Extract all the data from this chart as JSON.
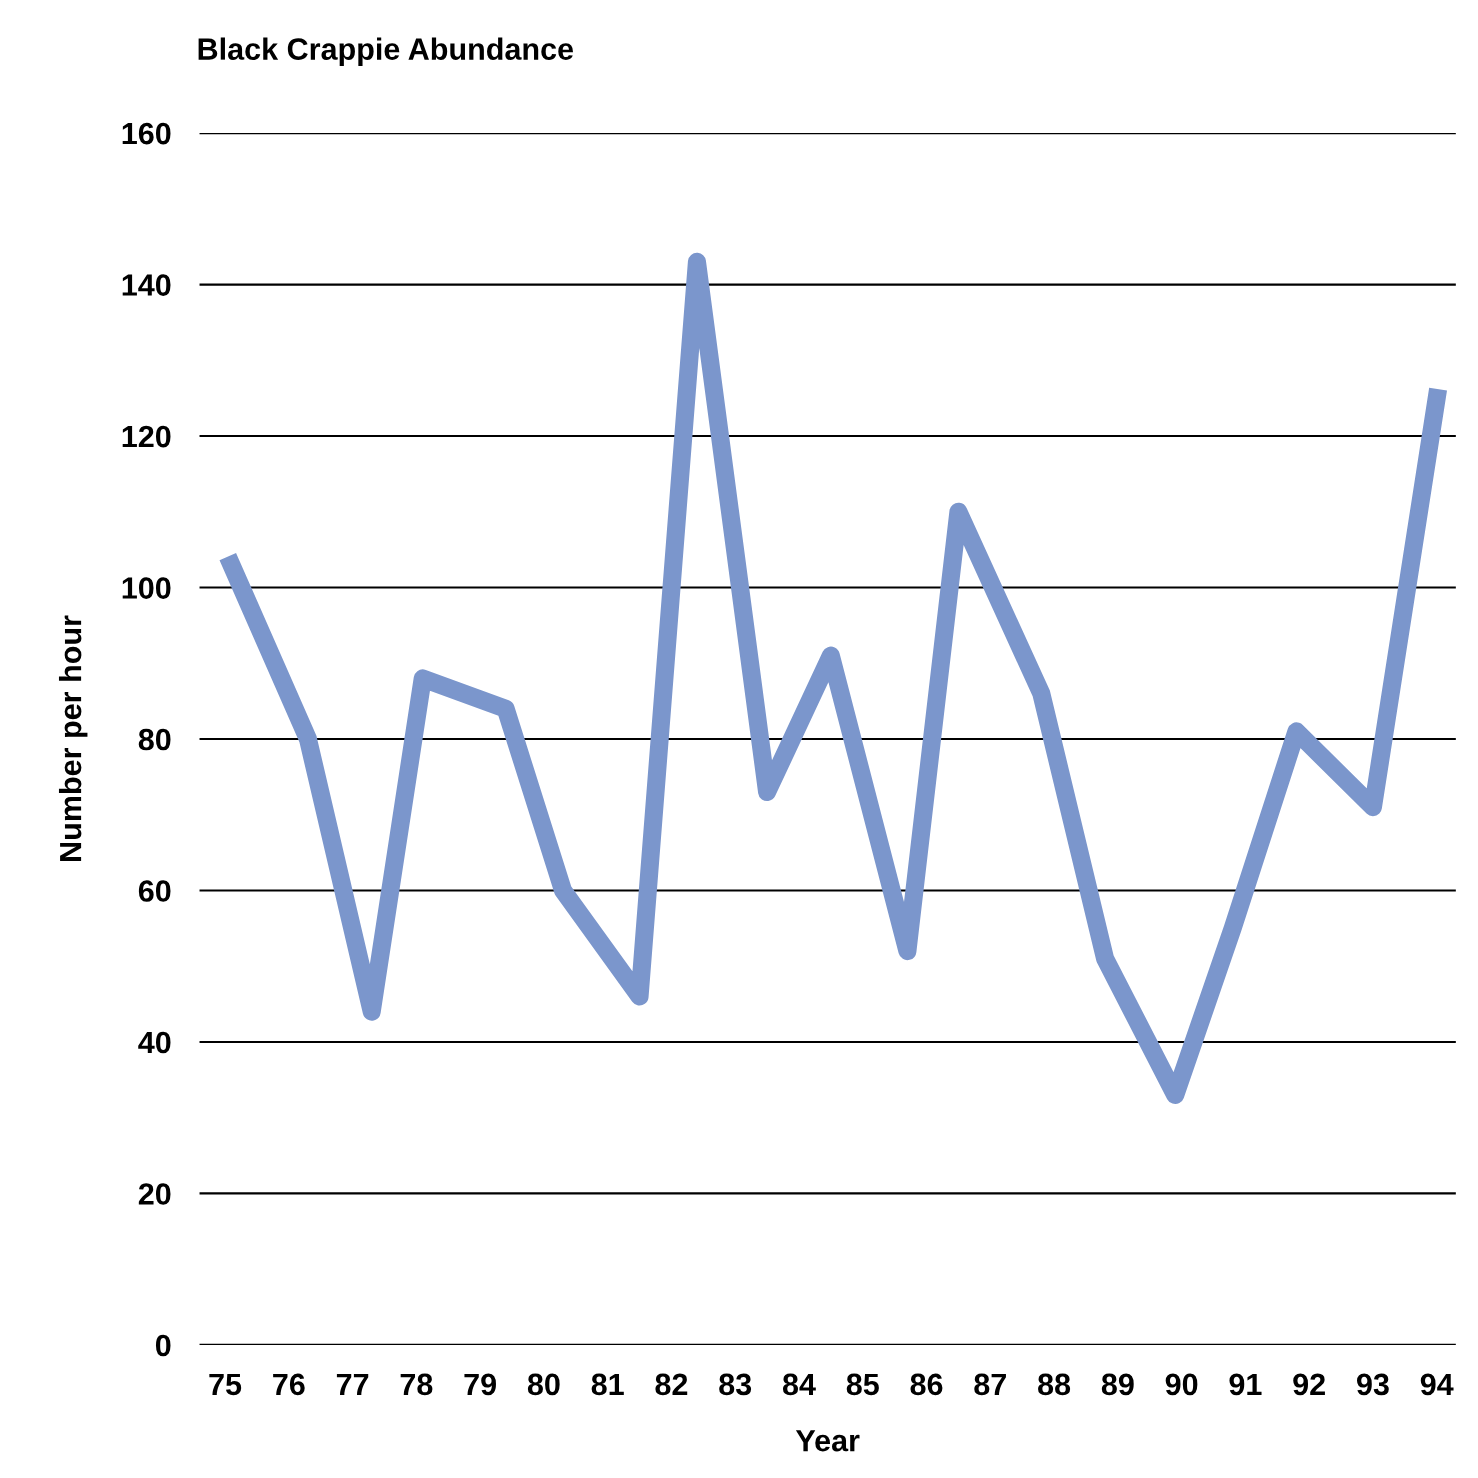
{
  "chart_data": {
    "type": "line",
    "title": "Black Crappie Abundance",
    "xlabel": "Year",
    "ylabel": "Number per hour",
    "x": [
      75.1,
      76.3,
      77.3,
      78.1,
      79.4,
      80.3,
      81.5,
      82.4,
      83.5,
      84.5,
      85.7,
      86.5,
      87.8,
      88.8,
      89.9,
      90.8,
      91.8,
      93.0,
      94.0
    ],
    "series": [
      {
        "color": "#7b96cc",
        "values": [
          103,
          80,
          44,
          88,
          84,
          60,
          46,
          143,
          73,
          91,
          52,
          110,
          86,
          51,
          33,
          55,
          81,
          71,
          125
        ]
      }
    ],
    "xlim": [
      74.6,
      94.3
    ],
    "xticks": [
      75,
      76,
      77,
      78,
      79,
      80,
      81,
      82,
      83,
      84,
      85,
      86,
      87,
      88,
      89,
      90,
      91,
      92,
      93,
      94
    ],
    "ylim": [
      0,
      160
    ],
    "yticks": [
      0,
      20,
      40,
      60,
      80,
      100,
      120,
      140,
      160
    ],
    "grid": "y",
    "legend": false,
    "marker": "none",
    "line_style": "solid"
  }
}
